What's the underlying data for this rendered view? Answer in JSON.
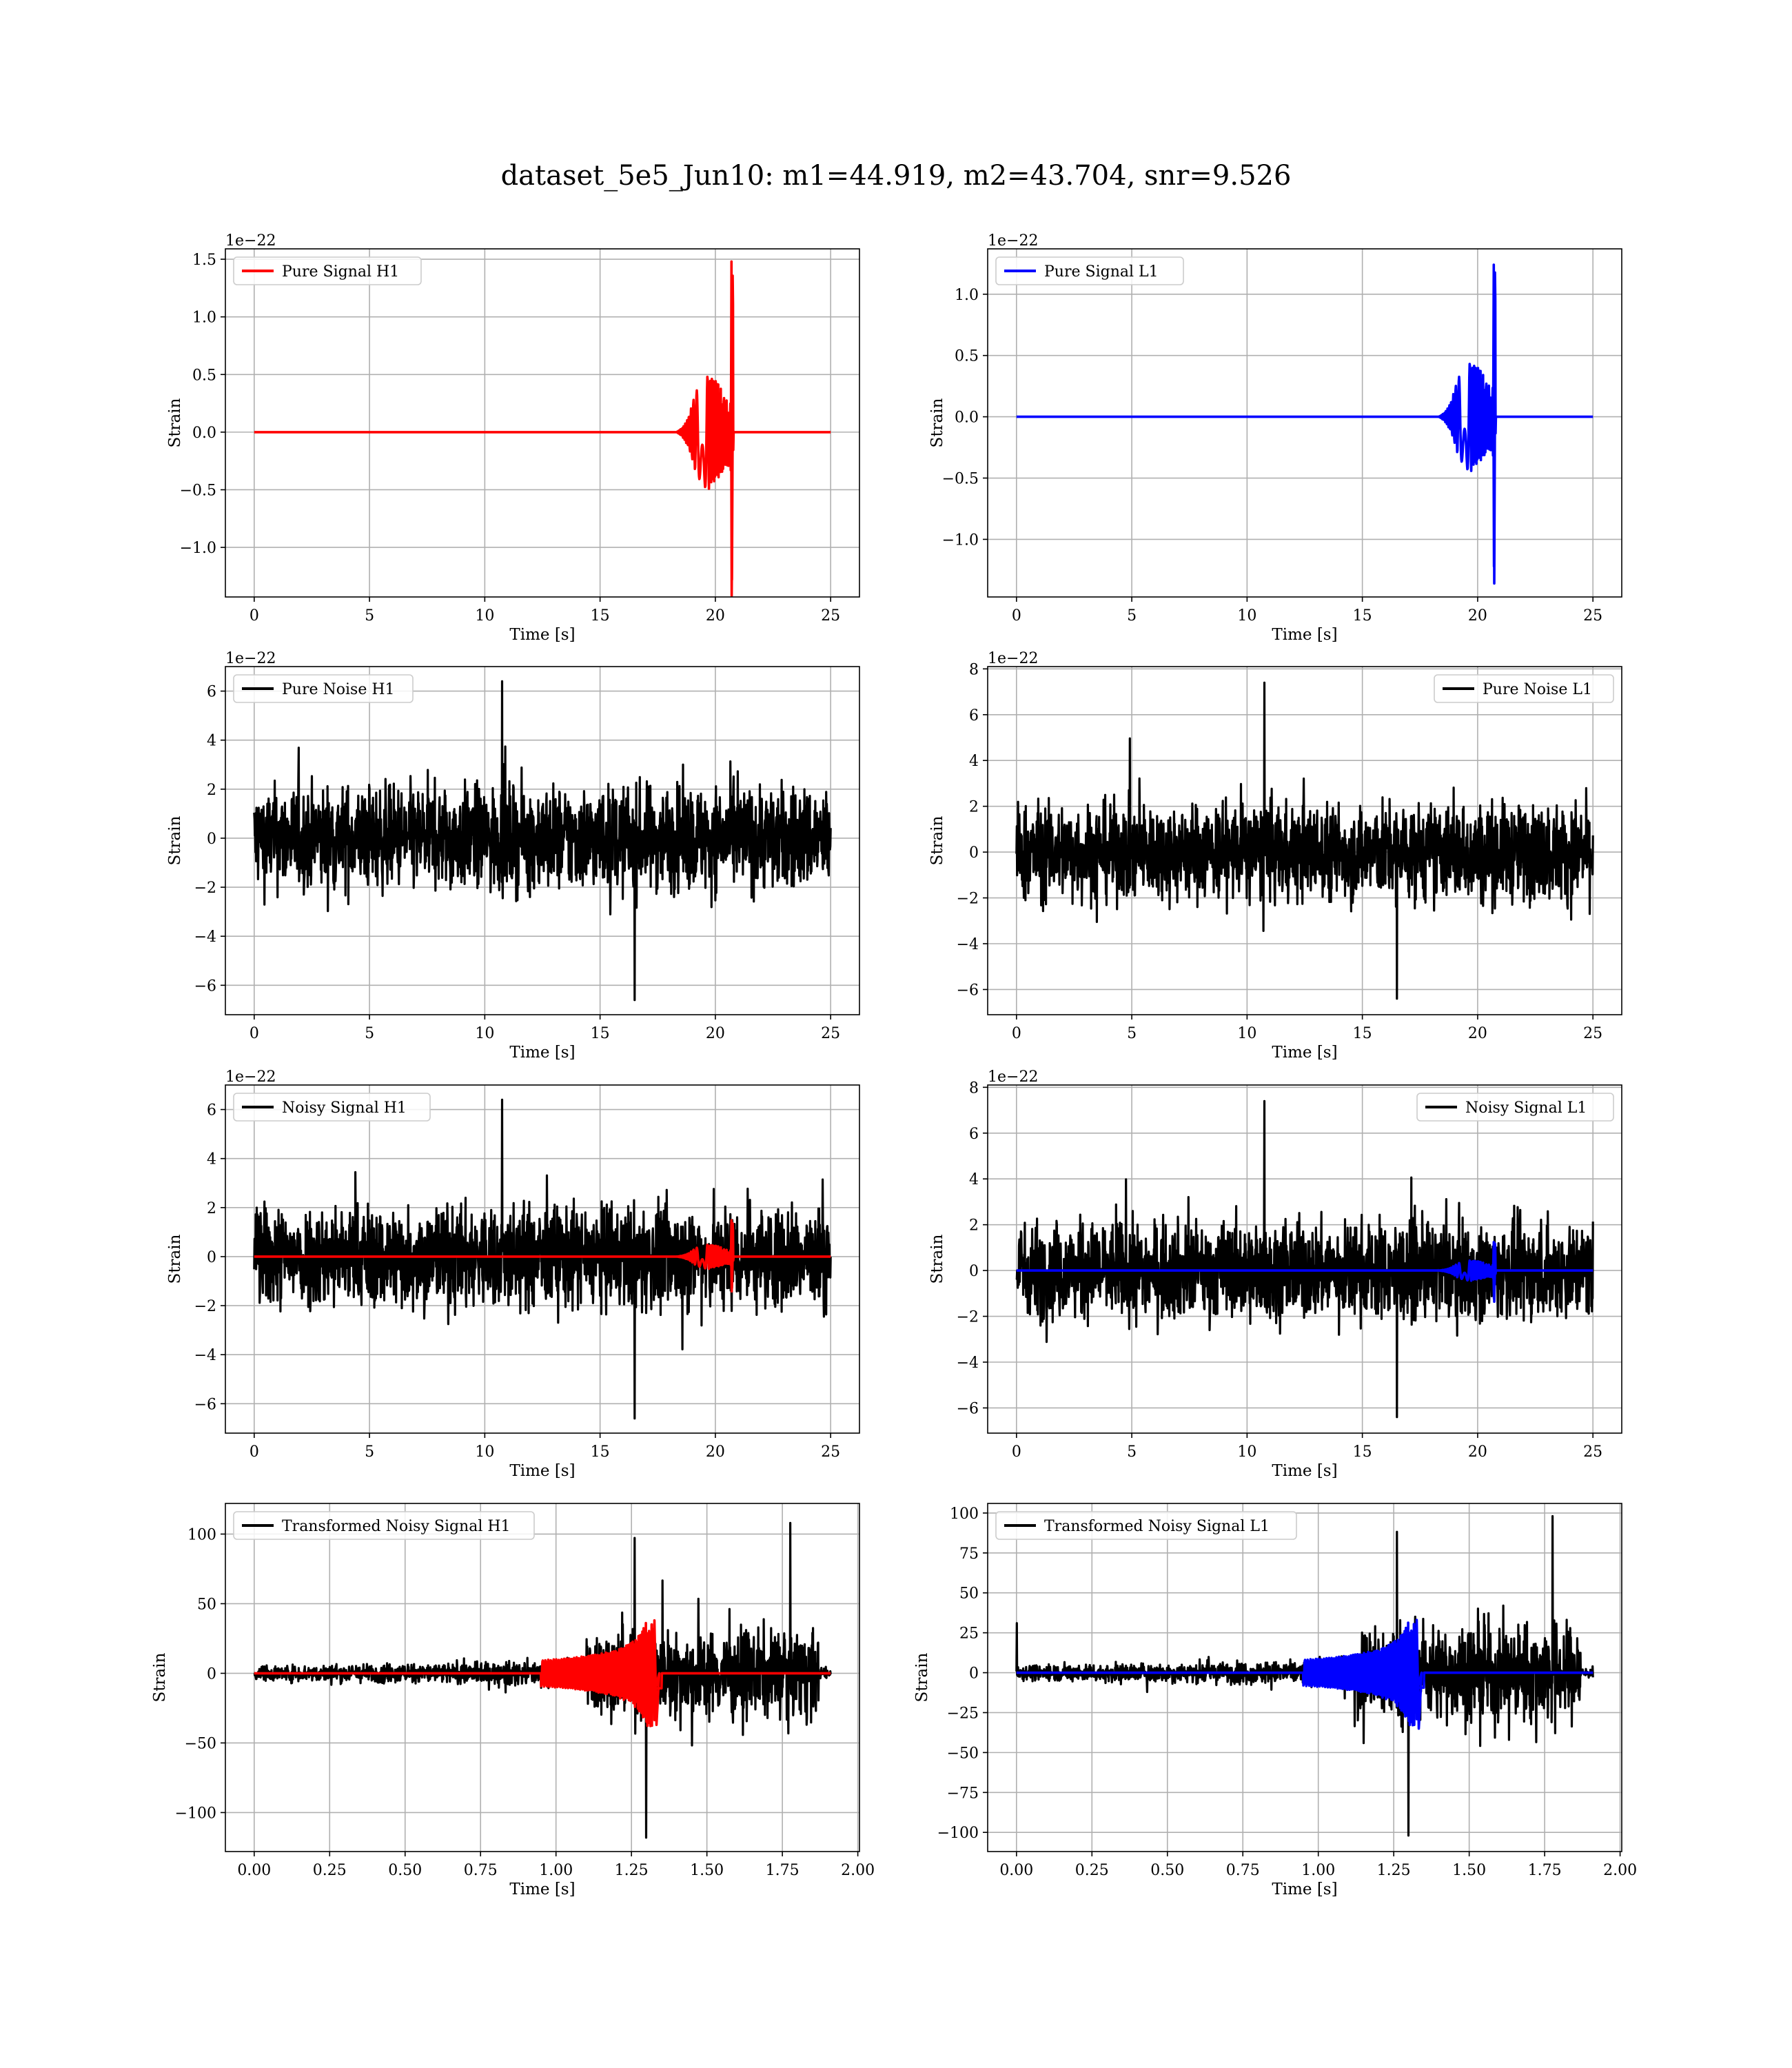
{
  "figure": {
    "title": "dataset_5e5_Jun10: m1=44.919, m2=43.704, snr=9.526"
  },
  "colors": {
    "signal_h1": "#ff0000",
    "signal_l1": "#0000ff",
    "noise": "#000000",
    "grid": "#b0b0b0"
  },
  "chart_data": [
    {
      "id": "pure-signal-h1",
      "type": "line",
      "xlabel": "Time [s]",
      "ylabel": "Strain",
      "offset_text": "1e−22",
      "xlim": [
        -1.25,
        26.25
      ],
      "ylim": [
        -1.43,
        1.59
      ],
      "xticks": [
        0,
        5,
        10,
        15,
        20,
        25
      ],
      "xtick_labels": [
        "0",
        "5",
        "10",
        "15",
        "20",
        "25"
      ],
      "yticks": [
        -1.0,
        -0.5,
        0.0,
        0.5,
        1.0,
        1.5
      ],
      "ytick_labels": [
        "−1.0",
        "−0.5",
        "0.0",
        "0.5",
        "1.0",
        "1.5"
      ],
      "grid": true,
      "legend_position": "upper left",
      "series": [
        {
          "name": "Pure Signal H1",
          "color": "#ff0000",
          "kind": "chirp",
          "x_range": [
            0,
            25
          ],
          "merger_time": 20.7,
          "peak": 1.48,
          "trough": -1.28,
          "envelope_plateau": 0.45,
          "onset": 18.3
        }
      ]
    },
    {
      "id": "pure-signal-l1",
      "type": "line",
      "xlabel": "Time [s]",
      "ylabel": "Strain",
      "offset_text": "1e−22",
      "xlim": [
        -1.25,
        26.25
      ],
      "ylim": [
        -1.47,
        1.37
      ],
      "xticks": [
        0,
        5,
        10,
        15,
        20,
        25
      ],
      "xtick_labels": [
        "0",
        "5",
        "10",
        "15",
        "20",
        "25"
      ],
      "yticks": [
        -1.0,
        -0.5,
        0.0,
        0.5,
        1.0
      ],
      "ytick_labels": [
        "−1.0",
        "−0.5",
        "0.0",
        "0.5",
        "1.0"
      ],
      "grid": true,
      "legend_position": "upper left",
      "series": [
        {
          "name": "Pure Signal L1",
          "color": "#0000ff",
          "kind": "chirp",
          "x_range": [
            0,
            25
          ],
          "merger_time": 20.7,
          "peak": 1.24,
          "trough": -1.36,
          "envelope_plateau": 0.4,
          "onset": 18.3
        }
      ]
    },
    {
      "id": "pure-noise-h1",
      "type": "line",
      "xlabel": "Time [s]",
      "ylabel": "Strain",
      "offset_text": "1e−22",
      "xlim": [
        -1.25,
        26.25
      ],
      "ylim": [
        -7.2,
        7.0
      ],
      "xticks": [
        0,
        5,
        10,
        15,
        20,
        25
      ],
      "xtick_labels": [
        "0",
        "5",
        "10",
        "15",
        "20",
        "25"
      ],
      "yticks": [
        -6,
        -4,
        -2,
        0,
        2,
        4,
        6
      ],
      "ytick_labels": [
        "−6",
        "−4",
        "−2",
        "0",
        "2",
        "4",
        "6"
      ],
      "grid": true,
      "legend_position": "upper left",
      "series": [
        {
          "name": "Pure Noise H1",
          "color": "#000000",
          "kind": "noise",
          "x_range": [
            0,
            25
          ],
          "band": 3.3,
          "max": 6.4,
          "min": -6.6
        }
      ]
    },
    {
      "id": "pure-noise-l1",
      "type": "line",
      "xlabel": "Time [s]",
      "ylabel": "Strain",
      "offset_text": "1e−22",
      "xlim": [
        -1.25,
        26.25
      ],
      "ylim": [
        -7.1,
        8.1
      ],
      "xticks": [
        0,
        5,
        10,
        15,
        20,
        25
      ],
      "xtick_labels": [
        "0",
        "5",
        "10",
        "15",
        "20",
        "25"
      ],
      "yticks": [
        -6,
        -4,
        -2,
        0,
        2,
        4,
        6,
        8
      ],
      "ytick_labels": [
        "−6",
        "−4",
        "−2",
        "0",
        "2",
        "4",
        "6",
        "8"
      ],
      "grid": true,
      "legend_position": "upper right",
      "series": [
        {
          "name": "Pure Noise L1",
          "color": "#000000",
          "kind": "noise",
          "x_range": [
            0,
            25
          ],
          "band": 3.3,
          "max": 7.4,
          "min": -6.4
        }
      ]
    },
    {
      "id": "noisy-signal-h1",
      "type": "line",
      "xlabel": "Time [s]",
      "ylabel": "Strain",
      "offset_text": "1e−22",
      "xlim": [
        -1.25,
        26.25
      ],
      "ylim": [
        -7.2,
        7.0
      ],
      "xticks": [
        0,
        5,
        10,
        15,
        20,
        25
      ],
      "xtick_labels": [
        "0",
        "5",
        "10",
        "15",
        "20",
        "25"
      ],
      "yticks": [
        -6,
        -4,
        -2,
        0,
        2,
        4,
        6
      ],
      "ytick_labels": [
        "−6",
        "−4",
        "−2",
        "0",
        "2",
        "4",
        "6"
      ],
      "grid": true,
      "legend_position": "upper left",
      "series": [
        {
          "name": "Noisy Signal H1",
          "color": "#000000",
          "kind": "noise",
          "x_range": [
            0,
            25
          ],
          "band": 3.3,
          "max": 6.4,
          "min": -6.6
        },
        {
          "color": "#ff0000",
          "kind": "chirp",
          "x_range": [
            0,
            25
          ],
          "merger_time": 20.7,
          "peak": 1.48,
          "trough": -1.28,
          "envelope_plateau": 0.45,
          "onset": 18.3
        }
      ]
    },
    {
      "id": "noisy-signal-l1",
      "type": "line",
      "xlabel": "Time [s]",
      "ylabel": "Strain",
      "offset_text": "1e−22",
      "xlim": [
        -1.25,
        26.25
      ],
      "ylim": [
        -7.1,
        8.1
      ],
      "xticks": [
        0,
        5,
        10,
        15,
        20,
        25
      ],
      "xtick_labels": [
        "0",
        "5",
        "10",
        "15",
        "20",
        "25"
      ],
      "yticks": [
        -6,
        -4,
        -2,
        0,
        2,
        4,
        6,
        8
      ],
      "ytick_labels": [
        "−6",
        "−4",
        "−2",
        "0",
        "2",
        "4",
        "6",
        "8"
      ],
      "grid": true,
      "legend_position": "upper right",
      "series": [
        {
          "name": "Noisy Signal L1",
          "color": "#000000",
          "kind": "noise",
          "x_range": [
            0,
            25
          ],
          "band": 3.3,
          "max": 7.4,
          "min": -6.4
        },
        {
          "color": "#0000ff",
          "kind": "chirp",
          "x_range": [
            0,
            25
          ],
          "merger_time": 20.7,
          "peak": 1.24,
          "trough": -1.36,
          "envelope_plateau": 0.4,
          "onset": 18.3
        }
      ]
    },
    {
      "id": "transformed-noisy-signal-h1",
      "type": "line",
      "xlabel": "Time [s]",
      "ylabel": "Strain",
      "offset_text": "",
      "xlim": [
        -0.0955,
        2.0055
      ],
      "ylim": [
        -128,
        122
      ],
      "xticks": [
        0.0,
        0.25,
        0.5,
        0.75,
        1.0,
        1.25,
        1.5,
        1.75,
        2.0
      ],
      "xtick_labels": [
        "0.00",
        "0.25",
        "0.50",
        "0.75",
        "1.00",
        "1.25",
        "1.50",
        "1.75",
        "2.00"
      ],
      "yticks": [
        -100,
        -50,
        0,
        50,
        100
      ],
      "ytick_labels": [
        "−100",
        "−50",
        "0",
        "50",
        "100"
      ],
      "grid": true,
      "legend_position": "upper left",
      "series": [
        {
          "name": "Transformed Noisy Signal H1",
          "color": "#000000",
          "kind": "whitened",
          "x_range": [
            0,
            1.91
          ],
          "low_band": 8,
          "high_band": 45,
          "jump_time": 1.1,
          "end_time": 1.87,
          "max": 108,
          "min": -118
        },
        {
          "color": "#ff0000",
          "kind": "whitened-chirp",
          "x_range": [
            0,
            1.91
          ],
          "merger_time": 1.33,
          "peak": 38,
          "trough": -37,
          "onset": 0.95
        }
      ]
    },
    {
      "id": "transformed-noisy-signal-l1",
      "type": "line",
      "xlabel": "Time [s]",
      "ylabel": "Strain",
      "offset_text": "",
      "xlim": [
        -0.0955,
        2.0055
      ],
      "ylim": [
        -112,
        106
      ],
      "xticks": [
        0.0,
        0.25,
        0.5,
        0.75,
        1.0,
        1.25,
        1.5,
        1.75,
        2.0
      ],
      "xtick_labels": [
        "0.00",
        "0.25",
        "0.50",
        "0.75",
        "1.00",
        "1.25",
        "1.50",
        "1.75",
        "2.00"
      ],
      "yticks": [
        -100,
        -75,
        -50,
        -25,
        0,
        25,
        50,
        75,
        100
      ],
      "ytick_labels": [
        "−100",
        "−75",
        "−50",
        "−25",
        "0",
        "25",
        "50",
        "75",
        "100"
      ],
      "grid": true,
      "legend_position": "upper left",
      "series": [
        {
          "name": "Transformed Noisy Signal L1",
          "color": "#000000",
          "kind": "whitened",
          "x_range": [
            0,
            1.91
          ],
          "low_band": 7,
          "high_band": 45,
          "jump_time": 1.12,
          "end_time": 1.87,
          "max": 98,
          "min": -102,
          "start_spike": 31
        },
        {
          "color": "#0000ff",
          "kind": "whitened-chirp",
          "x_range": [
            0,
            1.91
          ],
          "merger_time": 1.33,
          "peak": 33,
          "trough": -35,
          "onset": 0.95
        }
      ]
    }
  ]
}
